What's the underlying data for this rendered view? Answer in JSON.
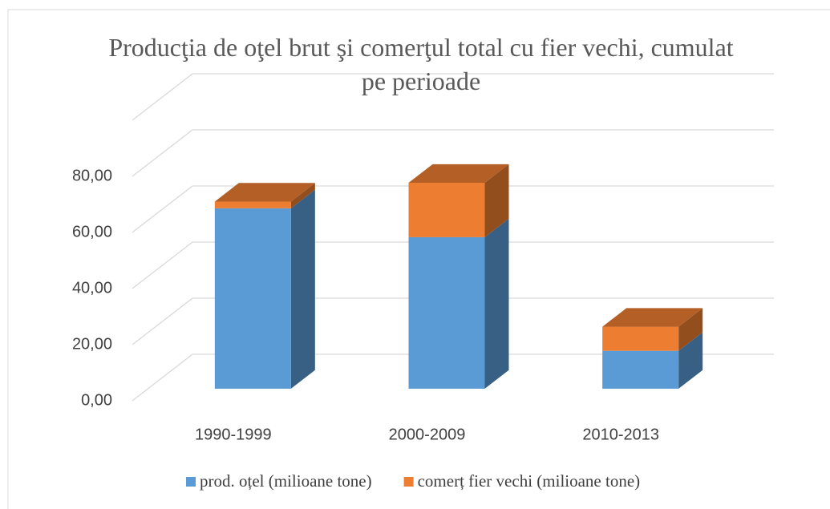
{
  "chart_data": {
    "type": "bar3d_stacked",
    "title": "Producţia de oţel brut şi comerţul total cu fier vechi, cumulat pe perioade",
    "categories": [
      "1990-1999",
      "2000-2009",
      "2010-2013"
    ],
    "series": [
      {
        "name": "prod. oțel (milioane tone)",
        "color": "#5b9bd5",
        "values": [
          64.3,
          54.0,
          13.5
        ]
      },
      {
        "name": "comerț fier vechi (milioane tone)",
        "color": "#ed7d31",
        "values": [
          2.4,
          19.4,
          8.6
        ]
      }
    ],
    "ylim": [
      0,
      100
    ],
    "yticks": [
      {
        "value": 0,
        "label": "0,00"
      },
      {
        "value": 20,
        "label": "20,00"
      },
      {
        "value": 40,
        "label": "40,00"
      },
      {
        "value": 60,
        "label": "60,00"
      },
      {
        "value": 80,
        "label": "80,00"
      }
    ],
    "grid": true,
    "legend": "bottom"
  }
}
